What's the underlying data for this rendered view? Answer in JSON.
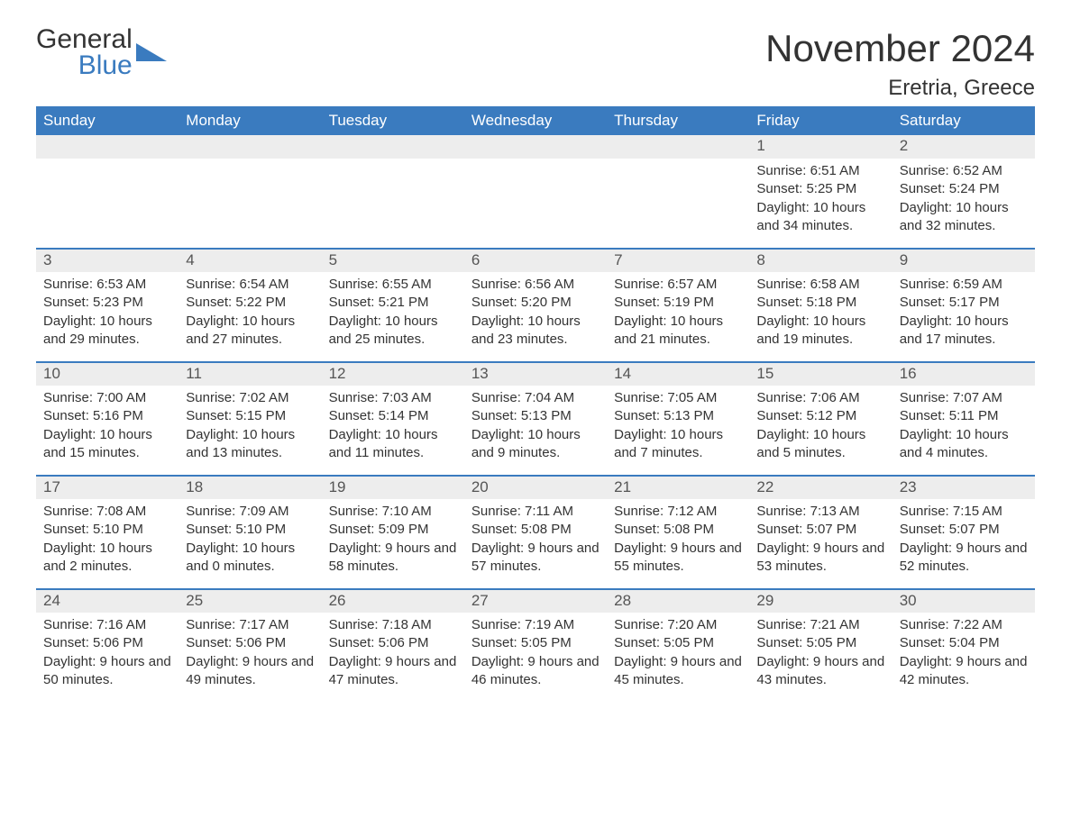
{
  "logo": {
    "line1": "General",
    "line2": "Blue",
    "shape_color": "#3a7bbf",
    "text_color_1": "#333333",
    "text_color_2": "#3a7bbf"
  },
  "title": "November 2024",
  "location": "Eretria, Greece",
  "colors": {
    "header_bg": "#3a7bbf",
    "header_text": "#ffffff",
    "daynum_bg": "#ededed",
    "border": "#3a7bbf",
    "body_text": "#333333"
  },
  "fonts": {
    "title_size_pt": 32,
    "location_size_pt": 18,
    "header_size_pt": 13,
    "cell_size_pt": 11
  },
  "weekdays": [
    "Sunday",
    "Monday",
    "Tuesday",
    "Wednesday",
    "Thursday",
    "Friday",
    "Saturday"
  ],
  "weeks": [
    [
      null,
      null,
      null,
      null,
      null,
      {
        "d": "1",
        "sr": "Sunrise: 6:51 AM",
        "ss": "Sunset: 5:25 PM",
        "dl": "Daylight: 10 hours and 34 minutes."
      },
      {
        "d": "2",
        "sr": "Sunrise: 6:52 AM",
        "ss": "Sunset: 5:24 PM",
        "dl": "Daylight: 10 hours and 32 minutes."
      }
    ],
    [
      {
        "d": "3",
        "sr": "Sunrise: 6:53 AM",
        "ss": "Sunset: 5:23 PM",
        "dl": "Daylight: 10 hours and 29 minutes."
      },
      {
        "d": "4",
        "sr": "Sunrise: 6:54 AM",
        "ss": "Sunset: 5:22 PM",
        "dl": "Daylight: 10 hours and 27 minutes."
      },
      {
        "d": "5",
        "sr": "Sunrise: 6:55 AM",
        "ss": "Sunset: 5:21 PM",
        "dl": "Daylight: 10 hours and 25 minutes."
      },
      {
        "d": "6",
        "sr": "Sunrise: 6:56 AM",
        "ss": "Sunset: 5:20 PM",
        "dl": "Daylight: 10 hours and 23 minutes."
      },
      {
        "d": "7",
        "sr": "Sunrise: 6:57 AM",
        "ss": "Sunset: 5:19 PM",
        "dl": "Daylight: 10 hours and 21 minutes."
      },
      {
        "d": "8",
        "sr": "Sunrise: 6:58 AM",
        "ss": "Sunset: 5:18 PM",
        "dl": "Daylight: 10 hours and 19 minutes."
      },
      {
        "d": "9",
        "sr": "Sunrise: 6:59 AM",
        "ss": "Sunset: 5:17 PM",
        "dl": "Daylight: 10 hours and 17 minutes."
      }
    ],
    [
      {
        "d": "10",
        "sr": "Sunrise: 7:00 AM",
        "ss": "Sunset: 5:16 PM",
        "dl": "Daylight: 10 hours and 15 minutes."
      },
      {
        "d": "11",
        "sr": "Sunrise: 7:02 AM",
        "ss": "Sunset: 5:15 PM",
        "dl": "Daylight: 10 hours and 13 minutes."
      },
      {
        "d": "12",
        "sr": "Sunrise: 7:03 AM",
        "ss": "Sunset: 5:14 PM",
        "dl": "Daylight: 10 hours and 11 minutes."
      },
      {
        "d": "13",
        "sr": "Sunrise: 7:04 AM",
        "ss": "Sunset: 5:13 PM",
        "dl": "Daylight: 10 hours and 9 minutes."
      },
      {
        "d": "14",
        "sr": "Sunrise: 7:05 AM",
        "ss": "Sunset: 5:13 PM",
        "dl": "Daylight: 10 hours and 7 minutes."
      },
      {
        "d": "15",
        "sr": "Sunrise: 7:06 AM",
        "ss": "Sunset: 5:12 PM",
        "dl": "Daylight: 10 hours and 5 minutes."
      },
      {
        "d": "16",
        "sr": "Sunrise: 7:07 AM",
        "ss": "Sunset: 5:11 PM",
        "dl": "Daylight: 10 hours and 4 minutes."
      }
    ],
    [
      {
        "d": "17",
        "sr": "Sunrise: 7:08 AM",
        "ss": "Sunset: 5:10 PM",
        "dl": "Daylight: 10 hours and 2 minutes."
      },
      {
        "d": "18",
        "sr": "Sunrise: 7:09 AM",
        "ss": "Sunset: 5:10 PM",
        "dl": "Daylight: 10 hours and 0 minutes."
      },
      {
        "d": "19",
        "sr": "Sunrise: 7:10 AM",
        "ss": "Sunset: 5:09 PM",
        "dl": "Daylight: 9 hours and 58 minutes."
      },
      {
        "d": "20",
        "sr": "Sunrise: 7:11 AM",
        "ss": "Sunset: 5:08 PM",
        "dl": "Daylight: 9 hours and 57 minutes."
      },
      {
        "d": "21",
        "sr": "Sunrise: 7:12 AM",
        "ss": "Sunset: 5:08 PM",
        "dl": "Daylight: 9 hours and 55 minutes."
      },
      {
        "d": "22",
        "sr": "Sunrise: 7:13 AM",
        "ss": "Sunset: 5:07 PM",
        "dl": "Daylight: 9 hours and 53 minutes."
      },
      {
        "d": "23",
        "sr": "Sunrise: 7:15 AM",
        "ss": "Sunset: 5:07 PM",
        "dl": "Daylight: 9 hours and 52 minutes."
      }
    ],
    [
      {
        "d": "24",
        "sr": "Sunrise: 7:16 AM",
        "ss": "Sunset: 5:06 PM",
        "dl": "Daylight: 9 hours and 50 minutes."
      },
      {
        "d": "25",
        "sr": "Sunrise: 7:17 AM",
        "ss": "Sunset: 5:06 PM",
        "dl": "Daylight: 9 hours and 49 minutes."
      },
      {
        "d": "26",
        "sr": "Sunrise: 7:18 AM",
        "ss": "Sunset: 5:06 PM",
        "dl": "Daylight: 9 hours and 47 minutes."
      },
      {
        "d": "27",
        "sr": "Sunrise: 7:19 AM",
        "ss": "Sunset: 5:05 PM",
        "dl": "Daylight: 9 hours and 46 minutes."
      },
      {
        "d": "28",
        "sr": "Sunrise: 7:20 AM",
        "ss": "Sunset: 5:05 PM",
        "dl": "Daylight: 9 hours and 45 minutes."
      },
      {
        "d": "29",
        "sr": "Sunrise: 7:21 AM",
        "ss": "Sunset: 5:05 PM",
        "dl": "Daylight: 9 hours and 43 minutes."
      },
      {
        "d": "30",
        "sr": "Sunrise: 7:22 AM",
        "ss": "Sunset: 5:04 PM",
        "dl": "Daylight: 9 hours and 42 minutes."
      }
    ]
  ]
}
